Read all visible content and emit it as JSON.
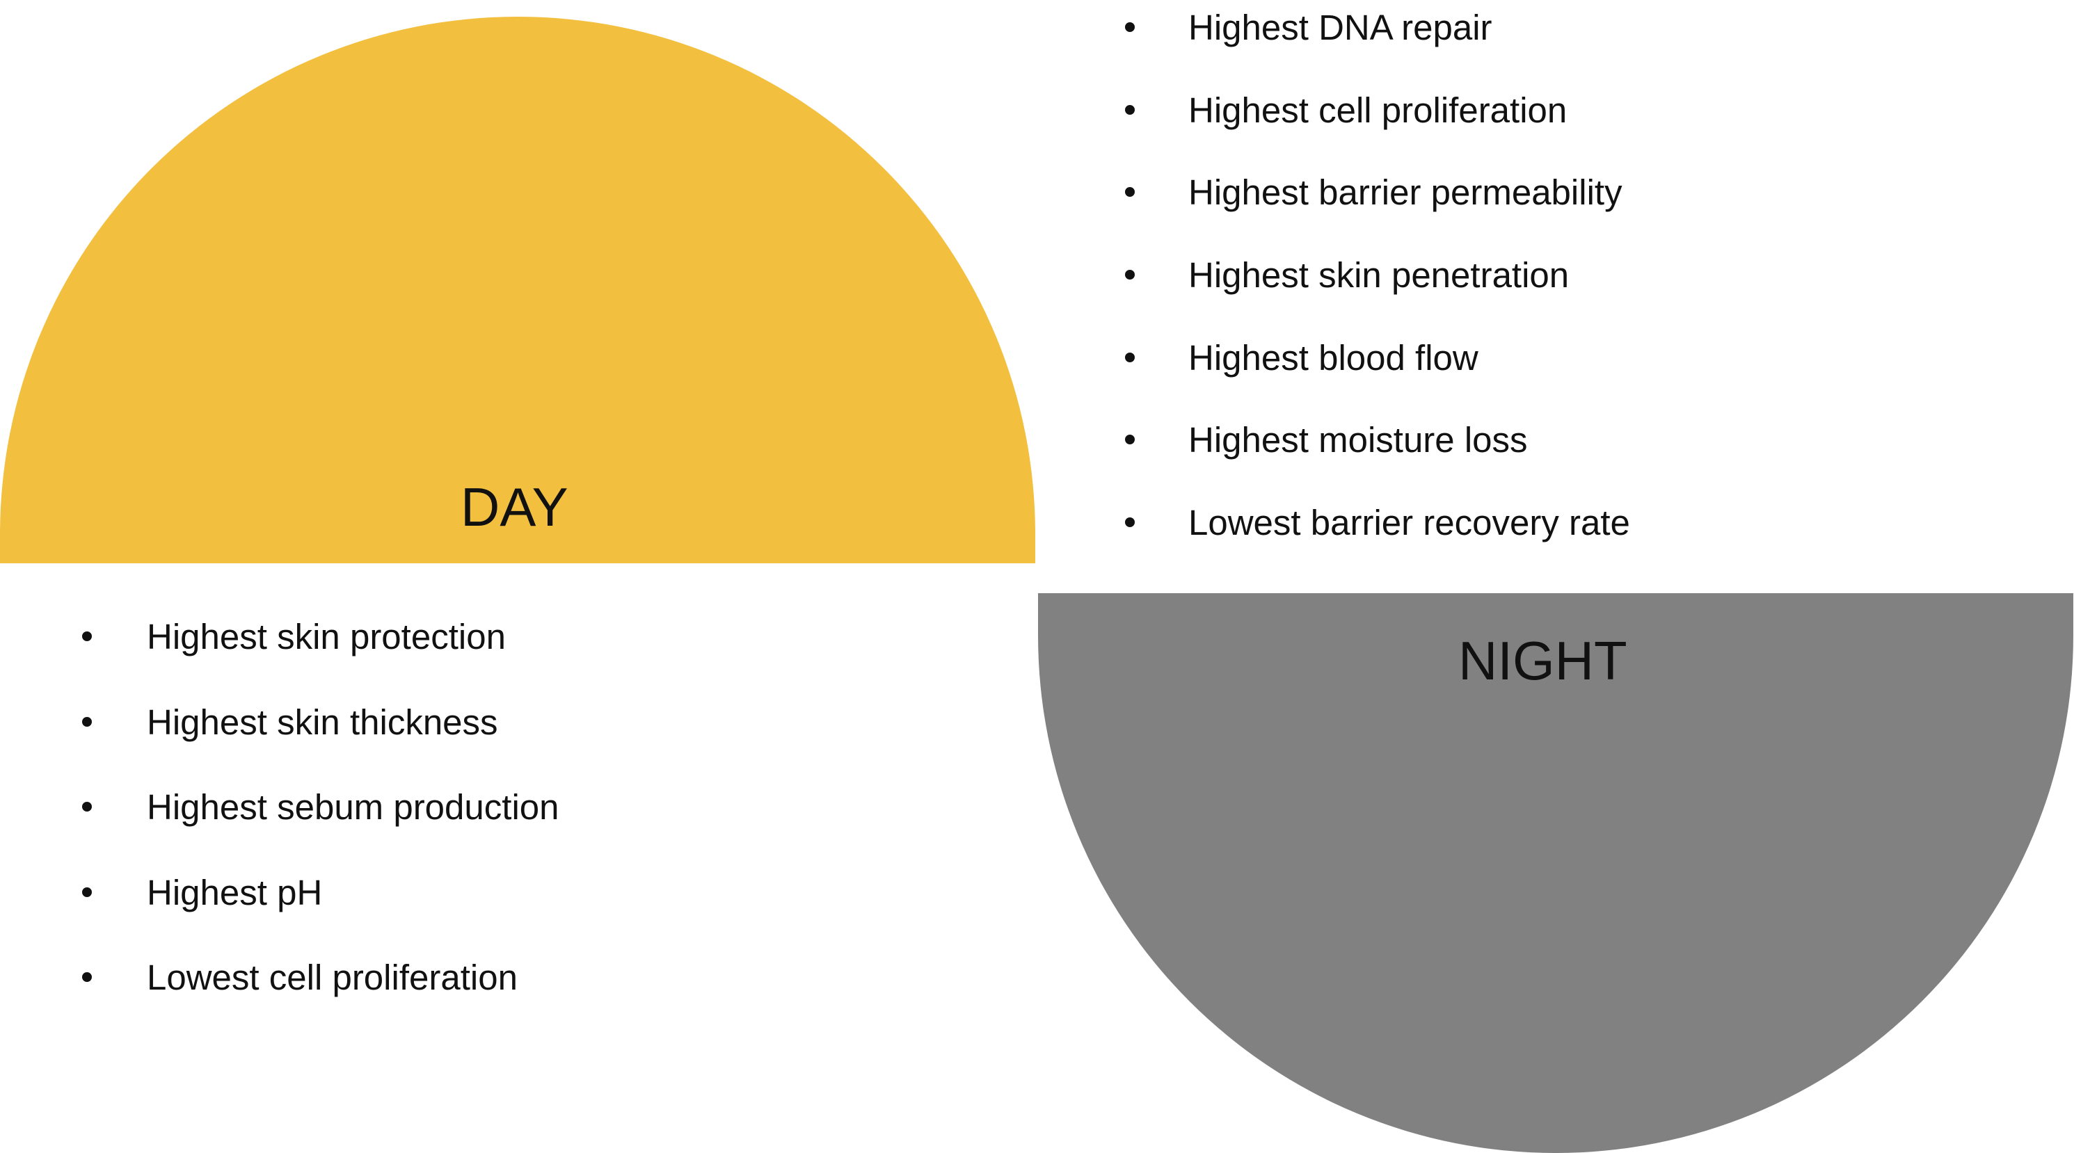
{
  "colors": {
    "day": "#F3BF3F",
    "night": "#808180"
  },
  "day": {
    "label": "DAY",
    "items": [
      "Highest skin protection",
      "Highest skin thickness",
      "Highest sebum production",
      "Highest pH",
      "Lowest cell proliferation"
    ]
  },
  "night": {
    "label": "NIGHT",
    "items": [
      "Highest DNA repair",
      "Highest cell proliferation",
      "Highest barrier permeability",
      "Highest skin penetration",
      "Highest blood flow",
      "Highest moisture loss",
      "Lowest barrier recovery rate"
    ]
  }
}
